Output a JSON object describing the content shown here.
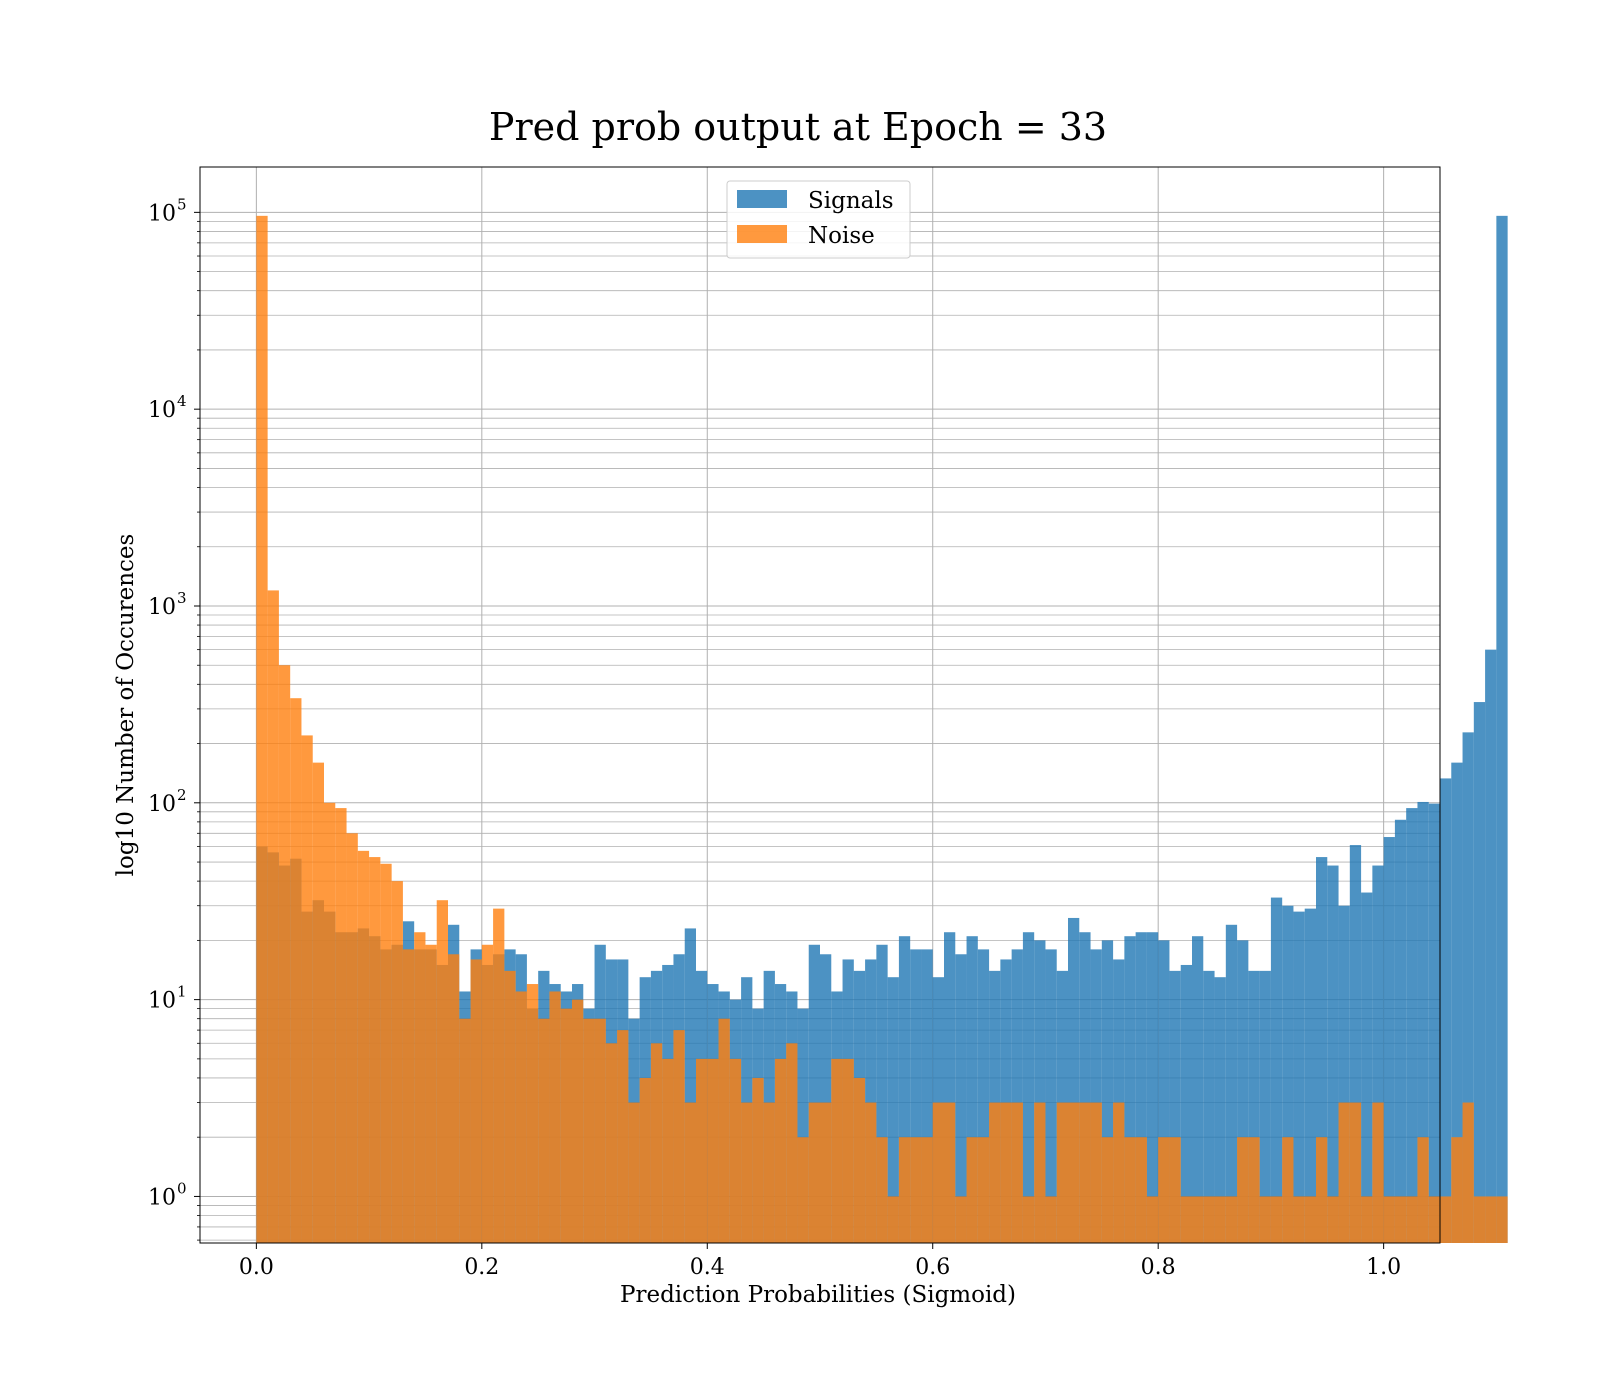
{
  "chart_data": {
    "type": "bar",
    "title": "Pred prob output at Epoch = 33",
    "xlabel": "Prediction Probabilities (Sigmoid)",
    "ylabel": "log10 Number of Occurences",
    "y_scale": "log",
    "xlim": [
      -0.05,
      1.05
    ],
    "ylim": [
      0.58,
      170000
    ],
    "grid": true,
    "legend_position": "upper center",
    "x_ticks": [
      {
        "value": 0.0,
        "label": "0.0"
      },
      {
        "value": 0.2,
        "label": "0.2"
      },
      {
        "value": 0.4,
        "label": "0.4"
      },
      {
        "value": 0.6,
        "label": "0.6"
      },
      {
        "value": 0.8,
        "label": "0.8"
      },
      {
        "value": 1.0,
        "label": "1.0"
      }
    ],
    "y_ticks": [
      {
        "value": 1,
        "base": "10",
        "exp": "0"
      },
      {
        "value": 10,
        "base": "10",
        "exp": "1"
      },
      {
        "value": 100,
        "base": "10",
        "exp": "2"
      },
      {
        "value": 1000,
        "base": "10",
        "exp": "3"
      },
      {
        "value": 10000,
        "base": "10",
        "exp": "4"
      },
      {
        "value": 100000,
        "base": "10",
        "exp": "5"
      }
    ],
    "bin_start": 0.0,
    "bin_width": 0.01,
    "series": [
      {
        "name": "Signals",
        "color": "#1f77b4",
        "alpha": 0.8,
        "values": [
          60,
          56,
          48,
          52,
          28,
          32,
          28,
          22,
          22,
          23,
          21,
          18,
          19,
          25,
          18,
          18,
          15,
          24,
          11,
          18,
          15,
          17,
          18,
          17,
          9,
          14,
          12,
          11,
          12,
          9,
          19,
          16,
          16,
          8,
          13,
          14,
          15,
          17,
          23,
          14,
          12,
          11,
          10,
          13,
          9,
          14,
          12,
          11,
          9,
          19,
          17,
          11,
          16,
          14,
          16,
          19,
          13,
          21,
          18,
          18,
          13,
          22,
          17,
          21,
          18,
          14,
          16,
          18,
          22,
          20,
          18,
          14,
          26,
          22,
          18,
          20,
          16,
          21,
          22,
          22,
          20,
          14,
          15,
          21,
          14,
          13,
          24,
          20,
          14,
          14,
          33,
          30,
          28,
          29,
          53,
          48,
          30,
          61,
          35,
          48,
          67,
          82,
          94,
          101,
          99,
          133,
          160,
          228,
          325,
          600,
          96000
        ]
      },
      {
        "name": "Noise",
        "color": "#ff7f0e",
        "alpha": 0.8,
        "values": [
          96000,
          1200,
          500,
          340,
          220,
          160,
          100,
          94,
          70,
          57,
          53,
          49,
          40,
          18,
          22,
          19,
          32,
          17,
          8,
          16,
          19,
          29,
          14,
          11,
          12,
          8,
          11,
          9,
          10,
          8,
          8,
          6,
          7,
          3,
          4,
          6,
          5,
          7,
          3,
          5,
          5,
          8,
          5,
          3,
          4,
          3,
          5,
          6,
          2,
          3,
          3,
          5,
          5,
          4,
          3,
          2,
          1,
          2,
          2,
          2,
          3,
          3,
          1,
          2,
          2,
          3,
          3,
          3,
          1,
          3,
          1,
          3,
          3,
          3,
          3,
          2,
          3,
          2,
          2,
          1,
          2,
          2,
          1,
          1,
          1,
          1,
          1,
          2,
          2,
          1,
          1,
          2,
          1,
          1,
          2,
          1,
          3,
          3,
          1,
          3,
          1,
          1,
          1,
          2,
          1,
          1,
          2,
          3,
          1,
          1,
          1
        ]
      }
    ]
  }
}
